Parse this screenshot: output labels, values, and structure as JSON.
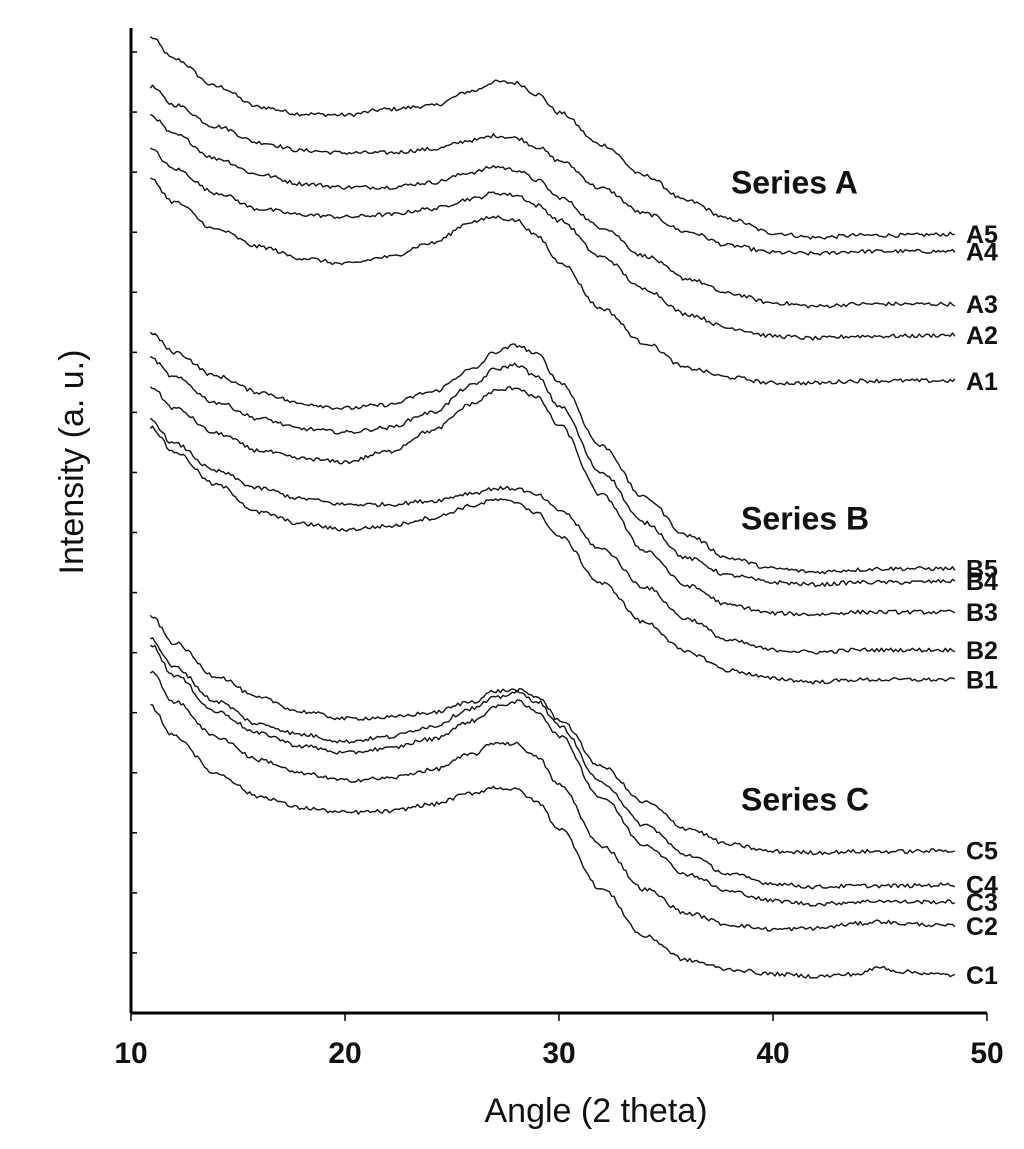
{
  "chart_data": {
    "type": "line",
    "xlabel": "Angle (2 theta)",
    "ylabel": "Intensity (a. u.)",
    "xlim": [
      10,
      50
    ],
    "xticks": [
      10,
      20,
      30,
      40,
      50
    ],
    "y_tick_labels": "none",
    "grid": false,
    "x": [
      10.9,
      12,
      14,
      16,
      18,
      20,
      22,
      24,
      26,
      27,
      28,
      29,
      30,
      32,
      34,
      36,
      38,
      40,
      42,
      44,
      45,
      46,
      48.5
    ],
    "group_labels": [
      {
        "text": "Series A",
        "x": 41
      },
      {
        "text": "Series B",
        "x": 41.5
      },
      {
        "text": "Series C",
        "x": 41.5
      }
    ],
    "series": [
      {
        "name": "A5",
        "group": 0,
        "values": [
          10.52,
          10.33,
          10.09,
          9.91,
          9.85,
          9.84,
          9.89,
          9.92,
          10.05,
          10.13,
          10.12,
          10.02,
          9.86,
          9.58,
          9.31,
          9.09,
          8.93,
          8.81,
          8.77,
          8.79,
          8.79,
          8.79,
          8.8
        ]
      },
      {
        "name": "A4",
        "group": 0,
        "values": [
          10.09,
          9.93,
          9.74,
          9.6,
          9.53,
          9.51,
          9.51,
          9.54,
          9.62,
          9.66,
          9.64,
          9.56,
          9.44,
          9.2,
          8.98,
          8.82,
          8.7,
          8.64,
          8.63,
          8.65,
          8.65,
          8.65,
          8.65
        ]
      },
      {
        "name": "A3",
        "group": 0,
        "values": [
          9.84,
          9.67,
          9.46,
          9.32,
          9.24,
          9.21,
          9.21,
          9.25,
          9.34,
          9.39,
          9.36,
          9.27,
          9.12,
          8.86,
          8.61,
          8.41,
          8.28,
          8.2,
          8.17,
          8.19,
          8.19,
          8.19,
          8.19
        ]
      },
      {
        "name": "A2",
        "group": 0,
        "values": [
          9.54,
          9.37,
          9.16,
          9.02,
          8.97,
          8.95,
          8.97,
          9.02,
          9.11,
          9.16,
          9.14,
          9.05,
          8.92,
          8.6,
          8.32,
          8.1,
          7.98,
          7.91,
          7.89,
          7.91,
          7.91,
          7.91,
          7.92
        ]
      },
      {
        "name": "A1",
        "group": 0,
        "values": [
          9.28,
          9.08,
          8.84,
          8.69,
          8.59,
          8.54,
          8.6,
          8.72,
          8.91,
          8.95,
          8.92,
          8.78,
          8.56,
          8.15,
          7.85,
          7.63,
          7.55,
          7.5,
          7.5,
          7.52,
          7.52,
          7.52,
          7.52
        ]
      },
      {
        "name": "B5",
        "group": 1,
        "values": [
          7.94,
          7.77,
          7.56,
          7.42,
          7.32,
          7.28,
          7.31,
          7.42,
          7.62,
          7.77,
          7.83,
          7.75,
          7.51,
          6.95,
          6.5,
          6.17,
          5.97,
          5.88,
          5.85,
          5.87,
          5.88,
          5.88,
          5.88
        ]
      },
      {
        "name": "B4",
        "group": 1,
        "values": [
          7.72,
          7.55,
          7.33,
          7.19,
          7.1,
          7.07,
          7.11,
          7.24,
          7.48,
          7.62,
          7.66,
          7.55,
          7.3,
          6.72,
          6.28,
          5.97,
          5.82,
          5.76,
          5.74,
          5.76,
          5.76,
          5.76,
          5.77
        ]
      },
      {
        "name": "B3",
        "group": 1,
        "values": [
          7.47,
          7.28,
          7.06,
          6.91,
          6.84,
          6.81,
          6.9,
          7.08,
          7.32,
          7.43,
          7.46,
          7.37,
          7.13,
          6.52,
          6.04,
          5.73,
          5.56,
          5.49,
          5.48,
          5.5,
          5.5,
          5.5,
          5.5
        ]
      },
      {
        "name": "B2",
        "group": 1,
        "values": [
          7.18,
          6.97,
          6.73,
          6.58,
          6.49,
          6.44,
          6.44,
          6.47,
          6.54,
          6.58,
          6.58,
          6.52,
          6.39,
          6.05,
          5.72,
          5.44,
          5.25,
          5.17,
          5.15,
          5.17,
          5.17,
          5.17,
          5.17
        ]
      },
      {
        "name": "B1",
        "group": 1,
        "values": [
          7.12,
          6.9,
          6.61,
          6.37,
          6.27,
          6.22,
          6.25,
          6.32,
          6.43,
          6.48,
          6.46,
          6.36,
          6.16,
          5.75,
          5.41,
          5.15,
          4.99,
          4.92,
          4.89,
          4.91,
          4.91,
          4.91,
          4.91
        ]
      },
      {
        "name": "C5",
        "group": 2,
        "values": [
          5.47,
          5.23,
          4.94,
          4.75,
          4.63,
          4.57,
          4.58,
          4.62,
          4.72,
          4.81,
          4.82,
          4.76,
          4.56,
          4.15,
          3.84,
          3.61,
          3.47,
          3.41,
          3.4,
          3.41,
          3.41,
          3.41,
          3.42
        ]
      },
      {
        "name": "C4",
        "group": 2,
        "values": [
          5.27,
          5.02,
          4.72,
          4.52,
          4.43,
          4.37,
          4.41,
          4.5,
          4.66,
          4.75,
          4.8,
          4.72,
          4.51,
          4.01,
          3.64,
          3.38,
          3.21,
          3.13,
          3.1,
          3.11,
          3.11,
          3.11,
          3.12
        ]
      },
      {
        "name": "C3",
        "group": 2,
        "values": [
          5.22,
          4.95,
          4.63,
          4.44,
          4.33,
          4.27,
          4.31,
          4.39,
          4.55,
          4.67,
          4.72,
          4.63,
          4.42,
          3.88,
          3.47,
          3.21,
          3.06,
          2.98,
          2.95,
          2.97,
          2.98,
          2.97,
          2.97
        ]
      },
      {
        "name": "C2",
        "group": 2,
        "values": [
          4.98,
          4.72,
          4.41,
          4.21,
          4.09,
          4.03,
          4.05,
          4.12,
          4.26,
          4.36,
          4.35,
          4.23,
          3.99,
          3.46,
          3.08,
          2.87,
          2.77,
          2.73,
          2.74,
          2.78,
          2.8,
          2.78,
          2.76
        ]
      },
      {
        "name": "C1",
        "group": 2,
        "values": [
          4.68,
          4.42,
          4.09,
          3.89,
          3.79,
          3.75,
          3.76,
          3.82,
          3.92,
          3.97,
          3.95,
          3.84,
          3.61,
          3.08,
          2.67,
          2.46,
          2.38,
          2.34,
          2.32,
          2.34,
          2.4,
          2.36,
          2.33
        ]
      }
    ]
  }
}
